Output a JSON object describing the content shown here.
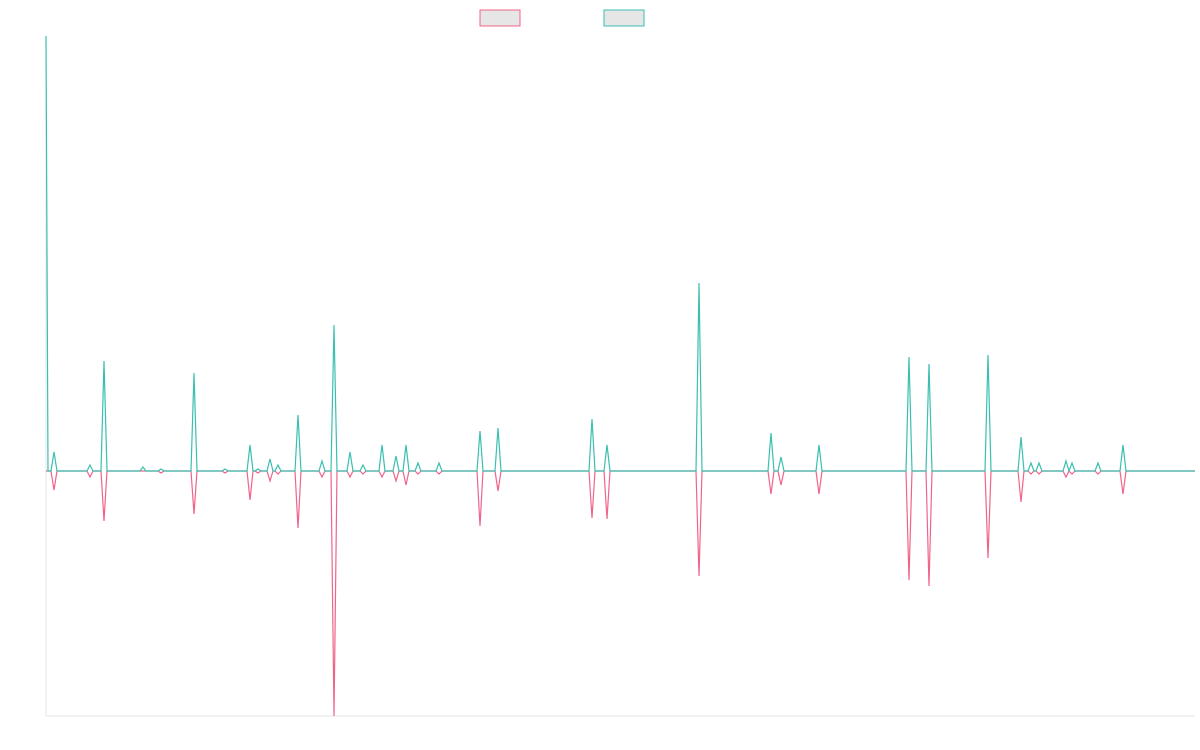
{
  "chart_data": {
    "type": "line",
    "x": [
      0,
      2,
      5,
      8,
      11,
      41,
      44,
      47,
      55,
      58,
      61,
      94,
      97,
      100,
      112,
      115,
      118,
      145,
      148,
      151,
      176,
      179,
      182,
      201,
      204,
      207,
      209,
      212,
      215,
      221,
      224,
      227,
      229,
      232,
      235,
      249,
      252,
      255,
      273,
      276,
      279,
      285,
      288,
      291,
      301,
      304,
      307,
      314,
      317,
      320,
      333,
      336,
      339,
      347,
      350,
      353,
      357,
      360,
      363,
      369,
      372,
      375,
      390,
      393,
      396,
      431,
      434,
      437,
      449,
      452,
      455,
      543,
      546,
      549,
      558,
      561,
      564,
      650,
      653,
      656,
      722,
      725,
      728,
      732,
      735,
      738,
      770,
      773,
      776,
      860,
      863,
      866,
      880,
      883,
      886,
      939,
      942,
      945,
      972,
      975,
      978,
      982,
      985,
      988,
      990,
      993,
      996,
      1017,
      1020,
      1023,
      1026,
      1029,
      1049,
      1052,
      1055,
      1074,
      1077,
      1080,
      1149
    ],
    "series": [
      {
        "color": "#f0648a",
        "values": [
          0,
          0,
          0,
          -19,
          0,
          0,
          -6,
          0,
          0,
          -50,
          0,
          0,
          0,
          0,
          0,
          -2,
          0,
          0,
          -43,
          0,
          0,
          -2,
          0,
          0,
          -29,
          0,
          0,
          -2,
          0,
          0,
          -10,
          0,
          0,
          -3,
          0,
          0,
          -57,
          0,
          0,
          -6,
          0,
          0,
          -245,
          0,
          0,
          -6,
          0,
          0,
          -3,
          0,
          0,
          -6,
          0,
          0,
          -10,
          0,
          0,
          -14,
          0,
          0,
          -3,
          0,
          0,
          -3,
          0,
          0,
          -55,
          0,
          0,
          -20,
          0,
          0,
          -47,
          0,
          0,
          -48,
          0,
          0,
          -105,
          0,
          0,
          -23,
          0,
          0,
          -14,
          0,
          0,
          -23,
          0,
          0,
          -109,
          0,
          0,
          -115,
          0,
          0,
          -87,
          0,
          0,
          -31,
          0,
          0,
          -3,
          0,
          0,
          -3,
          0,
          0,
          -6,
          0,
          -3,
          0,
          0,
          -3,
          0,
          0,
          -23,
          0,
          0
        ]
      },
      {
        "color": "#3bbfb0",
        "values": [
          435,
          0,
          0,
          19,
          0,
          0,
          6,
          0,
          0,
          110,
          0,
          0,
          4,
          0,
          0,
          2,
          0,
          0,
          98,
          0,
          0,
          2,
          0,
          0,
          26,
          0,
          0,
          2,
          0,
          0,
          12,
          0,
          0,
          6,
          0,
          0,
          56,
          0,
          0,
          10,
          0,
          0,
          146,
          0,
          0,
          19,
          0,
          0,
          6,
          0,
          0,
          26,
          0,
          0,
          15,
          0,
          0,
          26,
          0,
          0,
          8,
          0,
          0,
          8,
          0,
          0,
          40,
          0,
          0,
          43,
          0,
          0,
          52,
          0,
          0,
          26,
          0,
          0,
          188,
          0,
          0,
          38,
          0,
          0,
          14,
          0,
          0,
          26,
          0,
          0,
          114,
          0,
          0,
          107,
          0,
          0,
          116,
          0,
          0,
          34,
          0,
          0,
          8,
          0,
          0,
          8,
          0,
          0,
          10,
          0,
          8,
          0,
          0,
          8,
          0,
          0,
          26,
          0,
          0
        ]
      }
    ],
    "xlim": [
      0,
      1149
    ],
    "ylim": [
      -245,
      435
    ]
  }
}
